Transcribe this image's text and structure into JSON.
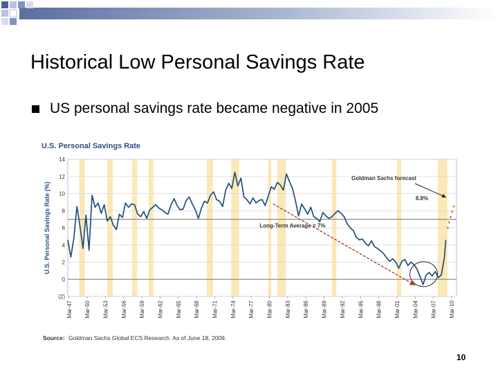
{
  "slide": {
    "title": "Historical Low Personal Savings Rate",
    "bullet": "US personal savings rate became negative in 2005",
    "page_number": "10"
  },
  "chart_data": {
    "type": "line",
    "title": "U.S. Personal Savings Rate",
    "ylabel": "U.S. Personal Savings Rate (%)",
    "xlabel": "",
    "ylim": [
      -2,
      14
    ],
    "yticks": [
      -2,
      0,
      2,
      4,
      6,
      8,
      10,
      12,
      14
    ],
    "ytick_labels": [
      "(2)",
      "0",
      "2",
      "4",
      "6",
      "8",
      "10",
      "12",
      "14"
    ],
    "xlim": [
      1947,
      2011
    ],
    "xtick_labels": [
      "Mar-47",
      "Mar-50",
      "Mar-53",
      "Mar-56",
      "Mar-59",
      "Mar-62",
      "Mar-65",
      "Mar-68",
      "Mar-71",
      "Mar-74",
      "Mar-77",
      "Mar-80",
      "Mar-83",
      "Mar-86",
      "Mar-89",
      "Mar-92",
      "Mar-95",
      "Mar-98",
      "Mar-01",
      "Mar-04",
      "Mar-07",
      "Mar-10"
    ],
    "recessions": [
      [
        1948.9,
        1949.8
      ],
      [
        1953.5,
        1954.4
      ],
      [
        1957.6,
        1958.4
      ],
      [
        1960.3,
        1961.1
      ],
      [
        1969.9,
        1970.9
      ],
      [
        1973.9,
        1975.2
      ],
      [
        1980.0,
        1980.5
      ],
      [
        1981.5,
        1982.9
      ],
      [
        1990.5,
        1991.2
      ],
      [
        2001.2,
        2001.9
      ],
      [
        2007.9,
        2009.5
      ]
    ],
    "series": [
      {
        "name": "U.S. Personal Savings Rate",
        "color": "#1f4e79",
        "x": [
          1947.0,
          1947.5,
          1948.0,
          1948.5,
          1949.0,
          1949.5,
          1950.0,
          1950.5,
          1951.0,
          1951.5,
          1952.0,
          1952.5,
          1953.0,
          1953.5,
          1954.0,
          1954.5,
          1955.0,
          1955.5,
          1956.0,
          1956.5,
          1957.0,
          1957.5,
          1958.0,
          1958.5,
          1959.0,
          1959.5,
          1960.0,
          1960.5,
          1961.0,
          1961.5,
          1962.0,
          1962.5,
          1963.0,
          1963.5,
          1964.0,
          1964.5,
          1965.0,
          1965.5,
          1966.0,
          1966.5,
          1967.0,
          1967.5,
          1968.0,
          1968.5,
          1969.0,
          1969.5,
          1970.0,
          1970.5,
          1971.0,
          1971.5,
          1972.0,
          1972.5,
          1973.0,
          1973.5,
          1974.0,
          1974.5,
          1975.0,
          1975.5,
          1976.0,
          1976.5,
          1977.0,
          1977.5,
          1978.0,
          1978.5,
          1979.0,
          1979.5,
          1980.0,
          1980.5,
          1981.0,
          1981.5,
          1982.0,
          1982.5,
          1983.0,
          1983.5,
          1984.0,
          1984.5,
          1985.0,
          1985.5,
          1986.0,
          1986.5,
          1987.0,
          1987.5,
          1988.0,
          1988.5,
          1989.0,
          1989.5,
          1990.0,
          1990.5,
          1991.0,
          1991.5,
          1992.0,
          1992.5,
          1993.0,
          1993.5,
          1994.0,
          1994.5,
          1995.0,
          1995.5,
          1996.0,
          1996.5,
          1997.0,
          1997.5,
          1998.0,
          1998.5,
          1999.0,
          1999.5,
          2000.0,
          2000.5,
          2001.0,
          2001.5,
          2002.0,
          2002.5,
          2003.0,
          2003.5,
          2004.0,
          2004.5,
          2005.0,
          2005.5,
          2006.0,
          2006.5,
          2007.0,
          2007.5,
          2008.0,
          2008.5,
          2009.0,
          2009.25
        ],
        "values": [
          4.6,
          2.6,
          4.8,
          8.5,
          6.2,
          3.6,
          7.5,
          3.4,
          9.8,
          8.4,
          8.9,
          7.7,
          8.7,
          6.8,
          7.3,
          6.3,
          5.8,
          7.6,
          7.2,
          8.9,
          8.4,
          8.8,
          8.7,
          7.6,
          7.3,
          7.9,
          7.1,
          8.1,
          8.4,
          8.7,
          8.3,
          8.1,
          7.8,
          7.6,
          8.7,
          9.4,
          8.6,
          8.1,
          8.2,
          9.2,
          9.6,
          8.8,
          8.1,
          7.1,
          8.3,
          9.1,
          8.9,
          9.8,
          10.2,
          9.3,
          9.1,
          8.5,
          10.4,
          11.2,
          10.6,
          12.5,
          10.9,
          11.8,
          9.6,
          9.3,
          8.8,
          9.5,
          8.9,
          9.2,
          9.3,
          8.6,
          9.7,
          10.8,
          10.5,
          11.3,
          11.0,
          10.4,
          12.3,
          11.4,
          10.6,
          9.1,
          7.4,
          8.8,
          8.2,
          7.6,
          8.4,
          7.3,
          7.1,
          6.7,
          7.8,
          7.4,
          7.1,
          7.3,
          7.7,
          8.0,
          7.7,
          7.3,
          6.5,
          6.0,
          5.7,
          4.9,
          4.6,
          4.7,
          4.2,
          3.9,
          4.5,
          3.8,
          3.6,
          3.3,
          3.0,
          2.5,
          2.1,
          2.4,
          2.0,
          1.3,
          2.1,
          2.3,
          1.6,
          2.0,
          1.7,
          1.2,
          0.3,
          -0.6,
          0.5,
          0.8,
          0.4,
          0.9,
          0.2,
          0.5,
          2.5,
          4.6
        ]
      },
      {
        "name": "Goldman Sachs forecast",
        "color": "#e08a2c",
        "x": [
          2009.5,
          2009.75,
          2010.0,
          2010.25,
          2010.5,
          2010.75
        ],
        "values": [
          5.9,
          6.5,
          7.2,
          7.8,
          8.4,
          8.8
        ]
      }
    ],
    "trend_line": {
      "x": [
        1980.8,
        2004.2
      ],
      "values": [
        8.8,
        -0.7
      ]
    },
    "long_term_average": {
      "value": 7,
      "label": "Long-Term Average = 7%"
    },
    "annotations": {
      "forecast_label": "Goldman Sachs forecast",
      "forecast_value_label": "8.8%",
      "source_prefix": "Source:",
      "source_text": "Goldman Sachs Global ECS Research. As of June 18, 2009."
    }
  }
}
